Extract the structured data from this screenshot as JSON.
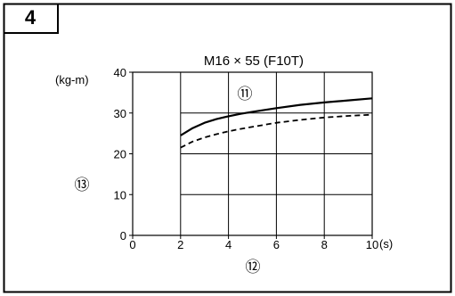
{
  "figure_number": "4",
  "chart_data": {
    "type": "line",
    "title": "M16 × 55 (F10T)",
    "ylabel": "(kg-m)",
    "xlabel_unit": "(s)",
    "x_marker_label": "⑫",
    "y_marker_label": "⑬",
    "series_marker_label": "⑪",
    "xlim": [
      0,
      10
    ],
    "ylim": [
      0,
      40
    ],
    "x_ticks": [
      0,
      2,
      4,
      6,
      8,
      10
    ],
    "y_ticks": [
      0,
      10,
      20,
      30,
      40
    ],
    "x_tick_labels": [
      "0",
      "2",
      "4",
      "6",
      "8",
      "10"
    ],
    "y_tick_labels": [
      "0",
      "10",
      "20",
      "30",
      "40"
    ],
    "grid": true,
    "grid_x_start": 2,
    "series": [
      {
        "style": "solid",
        "x": [
          2,
          2.5,
          3,
          3.5,
          4,
          4.5,
          5,
          6,
          7,
          8,
          9,
          10
        ],
        "y": [
          24.5,
          26.3,
          27.6,
          28.5,
          29.2,
          29.8,
          30.3,
          31.2,
          32.0,
          32.6,
          33.1,
          33.6
        ]
      },
      {
        "style": "dashed",
        "x": [
          2,
          2.5,
          3,
          3.5,
          4,
          4.5,
          5,
          6,
          7,
          8,
          9,
          10
        ],
        "y": [
          21.5,
          23.0,
          24.0,
          24.8,
          25.5,
          26.1,
          26.6,
          27.6,
          28.3,
          28.9,
          29.3,
          29.6
        ]
      }
    ]
  }
}
